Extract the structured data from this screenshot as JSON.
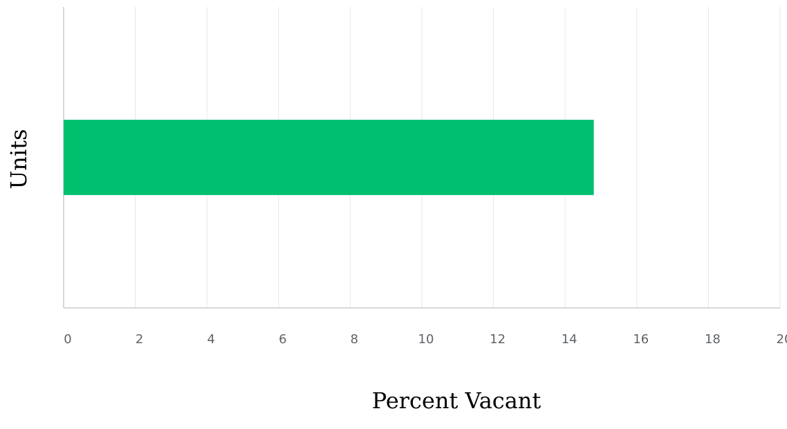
{
  "chart_data": {
    "type": "bar",
    "orientation": "horizontal",
    "categories": [
      ""
    ],
    "series": [
      {
        "values": [
          14.8
        ]
      }
    ],
    "xlabel": "Percent Vacant",
    "ylabel": "Units",
    "xlim": [
      0,
      20
    ],
    "xticks": [
      "0",
      "2",
      "4",
      "6",
      "8",
      "10",
      "12",
      "14",
      "16",
      "18",
      "20"
    ],
    "grid": "vertical",
    "legend": "none",
    "colors": {
      "bar": "#00bf6f",
      "grid": "#e6e6e6",
      "axis": "#cccccc"
    }
  }
}
